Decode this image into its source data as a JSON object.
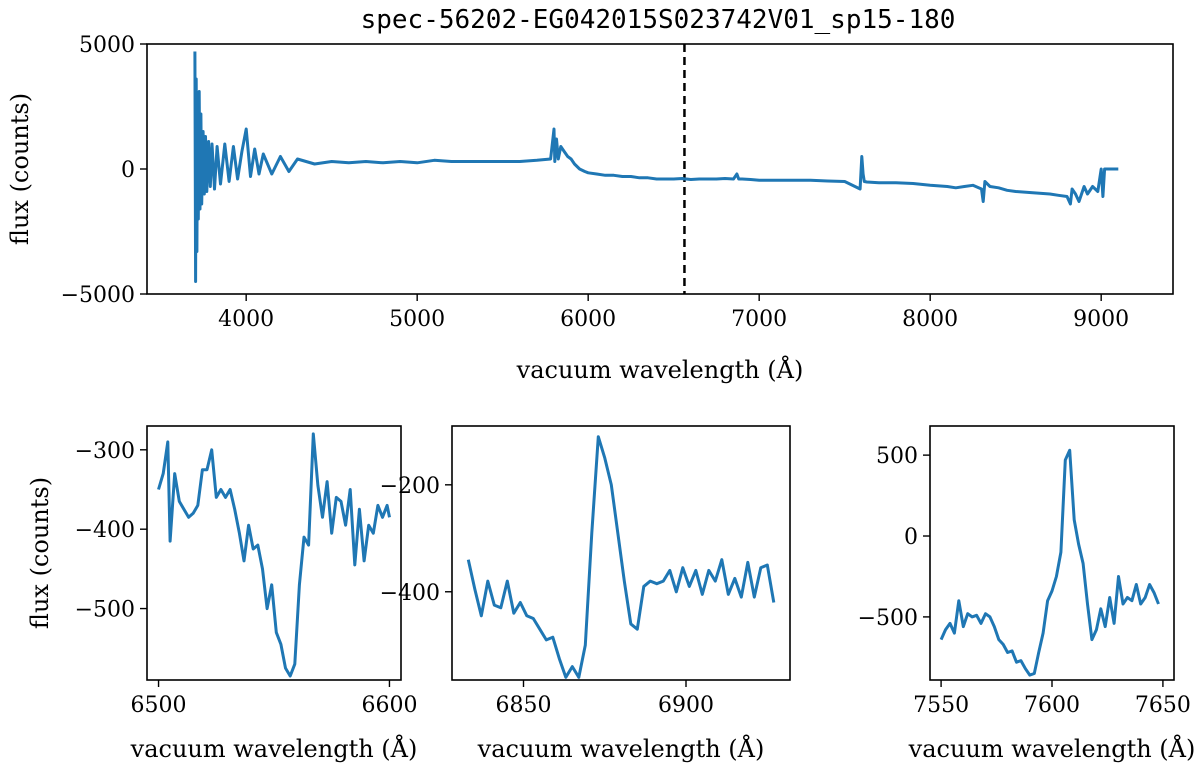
{
  "chart_data": [
    {
      "type": "line",
      "title": "spec-56202-EG042015S023742V01_sp15-180",
      "xlabel": "vacuum wavelength (Å)",
      "ylabel": "flux (counts)",
      "xlim": [
        3420,
        9420
      ],
      "ylim": [
        -5000,
        5000
      ],
      "xticks": [
        4000,
        5000,
        6000,
        7000,
        8000,
        9000
      ],
      "yticks": [
        -5000,
        0,
        5000
      ],
      "ytick_labels": [
        "−5000",
        "0",
        "5000"
      ],
      "color": "#1f77b4",
      "vline": {
        "x": 6563,
        "style": "dashed",
        "color": "#000000"
      },
      "series": [
        {
          "x": [
            3700,
            3704,
            3708,
            3712,
            3716,
            3720,
            3725,
            3730,
            3735,
            3740,
            3748,
            3755,
            3762,
            3770,
            3780,
            3790,
            3800,
            3815,
            3830,
            3850,
            3875,
            3900,
            3925,
            3950,
            3975,
            4000,
            4025,
            4050,
            4075,
            4100,
            4150,
            4200,
            4250,
            4300,
            4400,
            4500,
            4600,
            4700,
            4800,
            4900,
            5000,
            5100,
            5200,
            5300,
            5400,
            5500,
            5600,
            5700,
            5780,
            5800,
            5805,
            5815,
            5825,
            5840,
            5860,
            5880,
            5900,
            5920,
            5950,
            5980,
            6000,
            6050,
            6100,
            6150,
            6200,
            6250,
            6300,
            6350,
            6400,
            6450,
            6500,
            6550,
            6563,
            6575,
            6600,
            6650,
            6700,
            6750,
            6800,
            6850,
            6870,
            6880,
            6900,
            6950,
            7000,
            7100,
            7200,
            7300,
            7400,
            7500,
            7590,
            7600,
            7608,
            7615,
            7630,
            7700,
            7800,
            7900,
            8000,
            8100,
            8150,
            8200,
            8250,
            8300,
            8310,
            8320,
            8350,
            8400,
            8450,
            8500,
            8600,
            8700,
            8750,
            8800,
            8820,
            8830,
            8850,
            8870,
            8900,
            8920,
            8950,
            8980,
            9000,
            9010,
            9020,
            9050,
            9100
          ],
          "y": [
            4700,
            -4500,
            3600,
            -3300,
            2800,
            -2000,
            3100,
            -1600,
            2200,
            -1400,
            1500,
            -1000,
            1300,
            -900,
            1100,
            -700,
            1000,
            -800,
            900,
            -600,
            1000,
            -500,
            900,
            -400,
            700,
            1600,
            -300,
            800,
            -200,
            600,
            -200,
            500,
            -100,
            400,
            200,
            300,
            250,
            300,
            250,
            300,
            250,
            350,
            300,
            300,
            300,
            300,
            300,
            350,
            400,
            1600,
            300,
            1200,
            400,
            900,
            700,
            500,
            400,
            200,
            0,
            -100,
            -150,
            -200,
            -250,
            -250,
            -300,
            -300,
            -350,
            -350,
            -400,
            -400,
            -400,
            -380,
            -400,
            -400,
            -420,
            -400,
            -400,
            -400,
            -380,
            -400,
            -200,
            -400,
            -400,
            -420,
            -450,
            -450,
            -450,
            -450,
            -480,
            -500,
            -800,
            500,
            -200,
            -500,
            -520,
            -550,
            -550,
            -580,
            -650,
            -700,
            -750,
            -700,
            -650,
            -800,
            -1300,
            -500,
            -700,
            -750,
            -850,
            -900,
            -950,
            -1000,
            -1050,
            -1100,
            -1400,
            -800,
            -1000,
            -1300,
            -700,
            -1000,
            -700,
            -900,
            0,
            -1100,
            0,
            0,
            0
          ]
        }
      ]
    },
    {
      "type": "line",
      "title": "",
      "xlabel": "vacuum wavelength (Å)",
      "ylabel": "flux (counts)",
      "xlim": [
        6495,
        6605
      ],
      "ylim": [
        -590,
        -270
      ],
      "xticks": [
        6500,
        6600
      ],
      "yticks": [
        -500,
        -400,
        -300
      ],
      "ytick_labels": [
        "−500",
        "−400",
        "−300"
      ],
      "color": "#1f77b4",
      "series": [
        {
          "x": [
            6500,
            6502,
            6504,
            6505,
            6507,
            6509,
            6511,
            6513,
            6515,
            6517,
            6519,
            6521,
            6523,
            6525,
            6527,
            6529,
            6531,
            6533,
            6535,
            6537,
            6539,
            6541,
            6543,
            6545,
            6547,
            6549,
            6551,
            6553,
            6555,
            6557,
            6559,
            6561,
            6563,
            6565,
            6567,
            6569,
            6571,
            6573,
            6575,
            6577,
            6579,
            6581,
            6583,
            6585,
            6587,
            6589,
            6591,
            6593,
            6595,
            6597,
            6599,
            6600
          ],
          "y": [
            -350,
            -330,
            -290,
            -415,
            -330,
            -365,
            -375,
            -385,
            -380,
            -370,
            -325,
            -325,
            -300,
            -360,
            -350,
            -360,
            -350,
            -375,
            -405,
            -440,
            -395,
            -425,
            -420,
            -450,
            -500,
            -470,
            -530,
            -545,
            -575,
            -585,
            -570,
            -470,
            -410,
            -420,
            -280,
            -345,
            -385,
            -340,
            -405,
            -360,
            -365,
            -395,
            -350,
            -445,
            -375,
            -440,
            -395,
            -405,
            -370,
            -385,
            -370,
            -385
          ]
        }
      ]
    },
    {
      "type": "line",
      "title": "",
      "xlabel": "vacuum wavelength (Å)",
      "ylabel": "",
      "xlim": [
        6828,
        6932
      ],
      "ylim": [
        -565,
        -90
      ],
      "xticks": [
        6850,
        6900
      ],
      "yticks": [
        -400,
        -200
      ],
      "ytick_labels": [
        "−400",
        "−200"
      ],
      "color": "#1f77b4",
      "series": [
        {
          "x": [
            6833,
            6835,
            6837,
            6839,
            6841,
            6843,
            6845,
            6847,
            6849,
            6851,
            6853,
            6855,
            6857,
            6859,
            6861,
            6863,
            6865,
            6867,
            6869,
            6871,
            6873,
            6875,
            6877,
            6879,
            6881,
            6883,
            6885,
            6887,
            6889,
            6891,
            6893,
            6895,
            6897,
            6899,
            6901,
            6903,
            6905,
            6907,
            6909,
            6911,
            6913,
            6915,
            6917,
            6919,
            6921,
            6923,
            6925,
            6927
          ],
          "y": [
            -340,
            -395,
            -445,
            -380,
            -425,
            -430,
            -380,
            -440,
            -420,
            -445,
            -450,
            -470,
            -490,
            -485,
            -525,
            -560,
            -540,
            -560,
            -500,
            -290,
            -110,
            -150,
            -200,
            -290,
            -380,
            -460,
            -470,
            -390,
            -380,
            -385,
            -380,
            -360,
            -400,
            -355,
            -390,
            -360,
            -405,
            -360,
            -380,
            -340,
            -405,
            -375,
            -410,
            -345,
            -410,
            -355,
            -350,
            -420
          ]
        }
      ]
    },
    {
      "type": "line",
      "title": "",
      "xlabel": "vacuum wavelength (Å)",
      "ylabel": "",
      "xlim": [
        7545,
        7655
      ],
      "ylim": [
        -890,
        680
      ],
      "xticks": [
        7550,
        7600,
        7650
      ],
      "yticks": [
        -500,
        0,
        500
      ],
      "ytick_labels": [
        "−500",
        "0",
        "500"
      ],
      "color": "#1f77b4",
      "series": [
        {
          "x": [
            7550,
            7552,
            7554,
            7556,
            7558,
            7560,
            7562,
            7564,
            7566,
            7568,
            7570,
            7572,
            7574,
            7576,
            7578,
            7580,
            7582,
            7584,
            7586,
            7588,
            7590,
            7592,
            7594,
            7596,
            7598,
            7600,
            7602,
            7604,
            7606,
            7608,
            7610,
            7612,
            7614,
            7616,
            7618,
            7620,
            7622,
            7624,
            7626,
            7628,
            7630,
            7632,
            7634,
            7636,
            7638,
            7640,
            7642,
            7644,
            7646,
            7648
          ],
          "y": [
            -640,
            -580,
            -540,
            -600,
            -400,
            -560,
            -480,
            -500,
            -490,
            -540,
            -480,
            -500,
            -560,
            -640,
            -670,
            -720,
            -710,
            -780,
            -770,
            -820,
            -860,
            -850,
            -720,
            -600,
            -400,
            -340,
            -250,
            -100,
            470,
            530,
            100,
            -50,
            -170,
            -420,
            -640,
            -580,
            -450,
            -560,
            -380,
            -540,
            -250,
            -420,
            -380,
            -400,
            -300,
            -420,
            -380,
            -300,
            -350,
            -420
          ]
        }
      ]
    }
  ]
}
